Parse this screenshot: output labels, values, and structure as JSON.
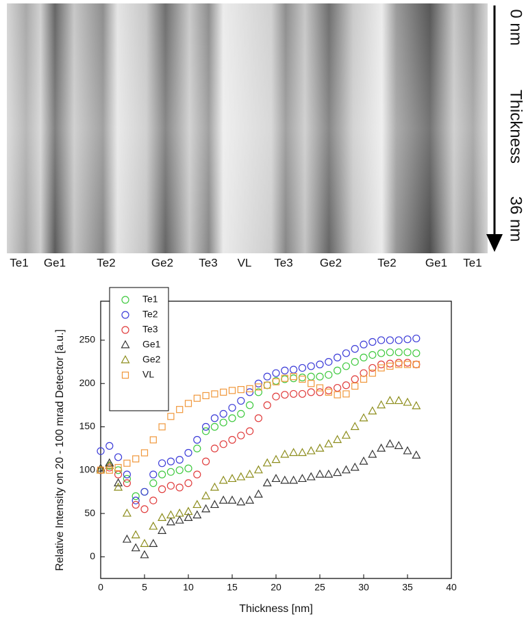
{
  "top_image": {
    "column_labels": [
      "Te1",
      "Ge1",
      "Te2",
      "Ge2",
      "Te3",
      "VL",
      "Te3",
      "Ge2",
      "Te2",
      "Ge1",
      "Te1"
    ],
    "arrow_labels": [
      "0 nm",
      "Thickness",
      "36 nm"
    ]
  },
  "chart_data": {
    "type": "scatter",
    "xlabel": "Thickness [nm]",
    "ylabel": "Relative Intensity on 20 - 100 mrad Detector [a.u.]",
    "xlim": [
      0,
      40
    ],
    "ylim": [
      -25,
      295
    ],
    "xticks": [
      0,
      5,
      10,
      15,
      20,
      25,
      30,
      35,
      40
    ],
    "yticks": [
      0,
      50,
      100,
      150,
      200,
      250
    ],
    "legend": "top-left",
    "x": [
      0,
      1,
      2,
      3,
      4,
      5,
      6,
      7,
      8,
      9,
      10,
      11,
      12,
      13,
      14,
      15,
      16,
      17,
      18,
      19,
      20,
      21,
      22,
      23,
      24,
      25,
      26,
      27,
      28,
      29,
      30,
      31,
      32,
      33,
      34,
      35,
      36
    ],
    "series": [
      {
        "name": "Te1",
        "color": "#3ec93e",
        "marker": "circle",
        "values": [
          100,
          105,
          100,
          90,
          70,
          75,
          85,
          95,
          98,
          100,
          102,
          125,
          145,
          150,
          155,
          160,
          165,
          175,
          190,
          198,
          203,
          205,
          206,
          207,
          208,
          208,
          210,
          215,
          220,
          225,
          230,
          233,
          235,
          236,
          236,
          236,
          235
        ]
      },
      {
        "name": "Te2",
        "color": "#3b3bd8",
        "marker": "circle",
        "values": [
          122,
          128,
          115,
          95,
          65,
          75,
          95,
          108,
          110,
          112,
          120,
          135,
          150,
          160,
          165,
          172,
          180,
          190,
          200,
          208,
          212,
          215,
          216,
          218,
          220,
          222,
          225,
          230,
          235,
          240,
          245,
          248,
          250,
          250,
          250,
          251,
          252
        ]
      },
      {
        "name": "Te3",
        "color": "#e03b3b",
        "marker": "circle",
        "values": [
          100,
          103,
          95,
          85,
          60,
          55,
          65,
          78,
          82,
          80,
          85,
          95,
          110,
          125,
          130,
          135,
          140,
          145,
          160,
          175,
          185,
          187,
          188,
          188,
          190,
          190,
          192,
          195,
          198,
          205,
          212,
          218,
          222,
          223,
          224,
          224,
          222
        ]
      },
      {
        "name": "Ge1",
        "color": "#333333",
        "marker": "triangle",
        "values": [
          102,
          108,
          85,
          20,
          10,
          2,
          15,
          30,
          40,
          42,
          45,
          48,
          55,
          60,
          65,
          65,
          63,
          65,
          72,
          85,
          90,
          88,
          88,
          90,
          92,
          95,
          95,
          97,
          100,
          103,
          110,
          118,
          125,
          130,
          128,
          122,
          117
        ]
      },
      {
        "name": "Ge2",
        "color": "#8c8c1a",
        "marker": "triangle",
        "values": [
          100,
          105,
          80,
          50,
          25,
          15,
          35,
          45,
          48,
          50,
          52,
          60,
          70,
          80,
          88,
          90,
          92,
          95,
          100,
          108,
          112,
          118,
          120,
          120,
          122,
          125,
          130,
          135,
          140,
          150,
          160,
          168,
          175,
          180,
          180,
          178,
          174
        ]
      },
      {
        "name": "VL",
        "color": "#f0973a",
        "marker": "square",
        "values": [
          100,
          100,
          103,
          108,
          113,
          120,
          135,
          150,
          162,
          170,
          177,
          183,
          186,
          188,
          190,
          192,
          193,
          194,
          196,
          198,
          202,
          206,
          208,
          205,
          200,
          195,
          190,
          187,
          188,
          197,
          205,
          212,
          218,
          220,
          222,
          222,
          222
        ]
      }
    ]
  }
}
